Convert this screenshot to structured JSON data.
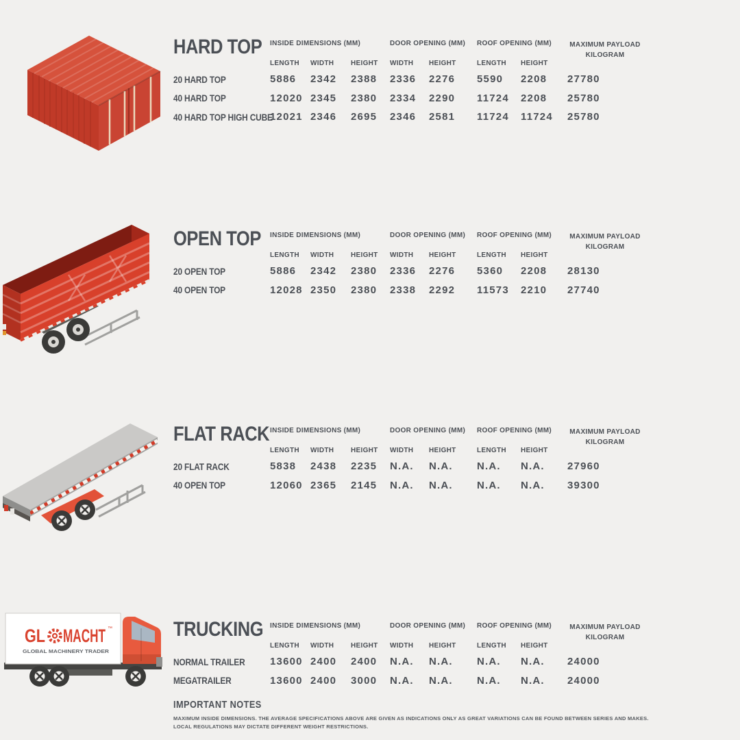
{
  "palette": {
    "background": "#f1f0ee",
    "text": "#4b4f55",
    "red": "#d8402b"
  },
  "table_headers": {
    "groups": [
      {
        "label": "INSIDE DIMENSIONS (MM)",
        "sub": [
          "LENGTH",
          "WIDTH",
          "HEIGHT"
        ]
      },
      {
        "label": "DOOR OPENING (MM)",
        "sub": [
          "WIDTH",
          "HEIGHT"
        ]
      },
      {
        "label": "ROOF OPENING (MM)",
        "sub": [
          "LENGTH",
          "HEIGHT"
        ]
      },
      {
        "label": "MAXIMUM PAYLOAD",
        "label2": "KILOGRAM",
        "sub": []
      }
    ]
  },
  "sections": [
    {
      "title": "HARD TOP",
      "illustration": "hard-top-container",
      "rows": [
        {
          "name": "20 HARD TOP",
          "values": [
            "5886",
            "2342",
            "2388",
            "2336",
            "2276",
            "5590",
            "2208",
            "27780"
          ]
        },
        {
          "name": "40 HARD TOP",
          "values": [
            "12020",
            "2345",
            "2380",
            "2334",
            "2290",
            "11724",
            "2208",
            "25780"
          ]
        },
        {
          "name": "40 HARD TOP HIGH CUBE",
          "values": [
            "12021",
            "2346",
            "2695",
            "2346",
            "2581",
            "11724",
            "11724",
            "25780"
          ]
        }
      ]
    },
    {
      "title": "OPEN TOP",
      "illustration": "open-top-trailer",
      "rows": [
        {
          "name": "20 OPEN TOP",
          "values": [
            "5886",
            "2342",
            "2380",
            "2336",
            "2276",
            "5360",
            "2208",
            "28130"
          ]
        },
        {
          "name": "40 OPEN TOP",
          "values": [
            "12028",
            "2350",
            "2380",
            "2338",
            "2292",
            "11573",
            "2210",
            "27740"
          ]
        }
      ]
    },
    {
      "title": "FLAT RACK",
      "illustration": "flat-rack-trailer",
      "rows": [
        {
          "name": "20 FLAT RACK",
          "values": [
            "5838",
            "2438",
            "2235",
            "N.A.",
            "N.A.",
            "N.A.",
            "N.A.",
            "27960"
          ]
        },
        {
          "name": "40 OPEN TOP",
          "values": [
            "12060",
            "2365",
            "2145",
            "N.A.",
            "N.A.",
            "N.A.",
            "N.A.",
            "39300"
          ]
        }
      ]
    },
    {
      "title": "TRUCKING",
      "illustration": "glomacht-truck",
      "rows": [
        {
          "name": "NORMAL TRAILER",
          "values": [
            "13600",
            "2400",
            "2400",
            "N.A.",
            "N.A.",
            "N.A.",
            "N.A.",
            "24000"
          ]
        },
        {
          "name": "MEGATRAILER",
          "values": [
            "13600",
            "2400",
            "3000",
            "N.A.",
            "N.A.",
            "N.A.",
            "N.A.",
            "24000"
          ]
        }
      ]
    }
  ],
  "logo": {
    "prefix": "GL",
    "suffix": "MACHT",
    "tm": "™",
    "tagline": "GLOBAL MACHINERY TRADER"
  },
  "notes": {
    "title": "IMPORTANT NOTES",
    "lines": [
      "MAXIMUM INSIDE DIMENSIONS. THE AVERAGE SPECIFICATIONS ABOVE ARE GIVEN AS INDICATIONS ONLY AS GREAT VARIATIONS CAN BE FOUND BETWEEN SERIES AND MAKES.",
      "LOCAL REGULATIONS MAY DICTATE DIFFERENT WEIGHT RESTRICTIONS."
    ]
  }
}
